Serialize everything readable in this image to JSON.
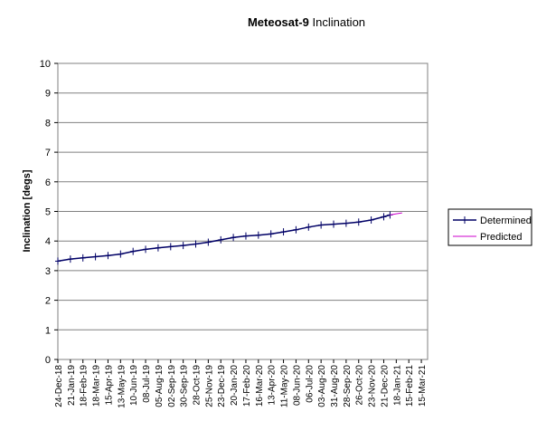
{
  "chart_data": {
    "type": "line",
    "title_bold": "Meteosat-9",
    "title_rest": " Inclination",
    "xlabel": "",
    "ylabel": "Inclination [degs]",
    "ylim": [
      0,
      10
    ],
    "yticks": [
      "0",
      "1",
      "2",
      "3",
      "4",
      "5",
      "6",
      "7",
      "8",
      "9",
      "10"
    ],
    "grid": "horizontal",
    "legend_position": "right",
    "x_tick_labels": [
      "24-Dec-18",
      "21-Jan-19",
      "18-Feb-19",
      "18-Mar-19",
      "15-Apr-19",
      "13-May-19",
      "10-Jun-19",
      "08-Jul-19",
      "05-Aug-19",
      "02-Sep-19",
      "30-Sep-19",
      "28-Oct-19",
      "25-Nov-19",
      "23-Dec-19",
      "20-Jan-20",
      "17-Feb-20",
      "16-Mar-20",
      "13-Apr-20",
      "11-May-20",
      "08-Jun-20",
      "06-Jul-20",
      "03-Aug-20",
      "31-Aug-20",
      "28-Sep-20",
      "26-Oct-20",
      "23-Nov-20",
      "21-Dec-20",
      "18-Jan-21",
      "15-Feb-21",
      "15-Mar-21"
    ],
    "series": [
      {
        "name": "Determined",
        "color": "#000066",
        "marker": "plus",
        "x": [
          "24-Dec-18",
          "21-Jan-19",
          "18-Feb-19",
          "18-Mar-19",
          "15-Apr-19",
          "13-May-19",
          "10-Jun-19",
          "08-Jul-19",
          "05-Aug-19",
          "02-Sep-19",
          "30-Sep-19",
          "28-Oct-19",
          "25-Nov-19",
          "23-Dec-19",
          "20-Jan-20",
          "17-Feb-20",
          "16-Mar-20",
          "13-Apr-20",
          "11-May-20",
          "08-Jun-20",
          "06-Jul-20",
          "03-Aug-20",
          "31-Aug-20",
          "28-Sep-20",
          "26-Oct-20",
          "23-Nov-20",
          "21-Dec-20",
          "04-Jan-21"
        ],
        "y": [
          3.32,
          3.39,
          3.43,
          3.47,
          3.51,
          3.56,
          3.65,
          3.72,
          3.77,
          3.81,
          3.85,
          3.9,
          3.96,
          4.04,
          4.12,
          4.17,
          4.2,
          4.24,
          4.31,
          4.38,
          4.47,
          4.54,
          4.57,
          4.6,
          4.64,
          4.71,
          4.82,
          4.88
        ]
      },
      {
        "name": "Predicted",
        "color": "#cc00cc",
        "x": [
          "04-Jan-21",
          "18-Jan-21",
          "31-Jan-21"
        ],
        "y": [
          4.88,
          4.92,
          4.95
        ]
      }
    ]
  }
}
